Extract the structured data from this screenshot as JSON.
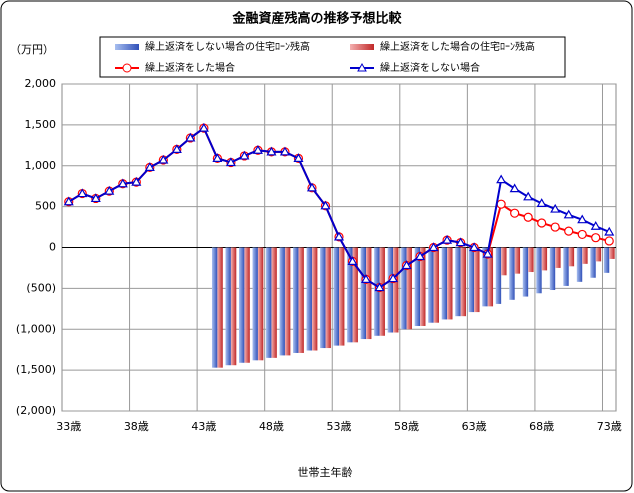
{
  "chart_data": {
    "type": "combo",
    "title": "金融資産残高の推移予想比較",
    "y_unit": "（万円）",
    "x_label": "世帯主年齢",
    "categories": [
      "33歳",
      null,
      null,
      null,
      null,
      "38歳",
      null,
      null,
      null,
      null,
      "43歳",
      null,
      null,
      null,
      null,
      "48歳",
      null,
      null,
      null,
      null,
      "53歳",
      null,
      null,
      null,
      null,
      "58歳",
      null,
      null,
      null,
      null,
      "63歳",
      null,
      null,
      null,
      null,
      "68歳",
      null,
      null,
      null,
      null,
      "73歳"
    ],
    "ylim": [
      -2000,
      2000
    ],
    "yticks": [
      {
        "value": 2000,
        "label": "2,000"
      },
      {
        "value": 1500,
        "label": "1,500"
      },
      {
        "value": 1000,
        "label": "1,000"
      },
      500,
      0,
      {
        "value": -500,
        "label": "(500)"
      },
      {
        "value": -1000,
        "label": "(1,000)"
      },
      {
        "value": -1500,
        "label": "(1,500)"
      },
      {
        "value": -2000,
        "label": "(2,000)"
      }
    ],
    "grid": true,
    "series": [
      {
        "name": "繰上返済をしない場合の住宅ﾛｰﾝ残高",
        "type": "bar",
        "color": "#4a6fd0",
        "values": [
          null,
          null,
          null,
          null,
          null,
          null,
          null,
          null,
          null,
          null,
          null,
          -1470,
          -1440,
          -1410,
          -1380,
          -1350,
          -1320,
          -1290,
          -1260,
          -1230,
          -1200,
          -1160,
          -1120,
          -1080,
          -1040,
          -1000,
          -960,
          -920,
          -880,
          -840,
          -790,
          -720,
          -690,
          -640,
          -600,
          -560,
          -520,
          -470,
          -420,
          -370,
          -310
        ]
      },
      {
        "name": "繰上返済をした場合の住宅ﾛｰﾝ残高",
        "type": "bar",
        "color": "#d94a4a",
        "values": [
          null,
          null,
          null,
          null,
          null,
          null,
          null,
          null,
          null,
          null,
          null,
          -1470,
          -1440,
          -1410,
          -1380,
          -1350,
          -1320,
          -1290,
          -1260,
          -1230,
          -1200,
          -1160,
          -1120,
          -1080,
          -1040,
          -1000,
          -960,
          -920,
          -880,
          -840,
          -790,
          -720,
          -340,
          -320,
          -300,
          -280,
          -250,
          -230,
          -200,
          -170,
          -140
        ]
      },
      {
        "name": "繰上返済をした場合",
        "type": "line",
        "marker": "circle",
        "color": "#ff0000",
        "values": [
          560,
          660,
          600,
          690,
          780,
          800,
          980,
          1070,
          1200,
          1340,
          1460,
          1090,
          1040,
          1120,
          1190,
          1170,
          1170,
          1090,
          730,
          510,
          130,
          -170,
          -390,
          -490,
          -380,
          -220,
          -110,
          0,
          90,
          60,
          0,
          -80,
          530,
          420,
          370,
          300,
          250,
          200,
          160,
          120,
          80
        ]
      },
      {
        "name": "繰上返済をしない場合",
        "type": "line",
        "marker": "triangle",
        "color": "#0000cc",
        "values": [
          560,
          660,
          600,
          690,
          780,
          800,
          980,
          1070,
          1200,
          1340,
          1460,
          1090,
          1040,
          1120,
          1190,
          1170,
          1170,
          1090,
          730,
          510,
          130,
          -170,
          -390,
          -490,
          -380,
          -220,
          -110,
          0,
          90,
          60,
          0,
          -80,
          830,
          720,
          620,
          540,
          470,
          400,
          340,
          260,
          190
        ]
      }
    ]
  }
}
